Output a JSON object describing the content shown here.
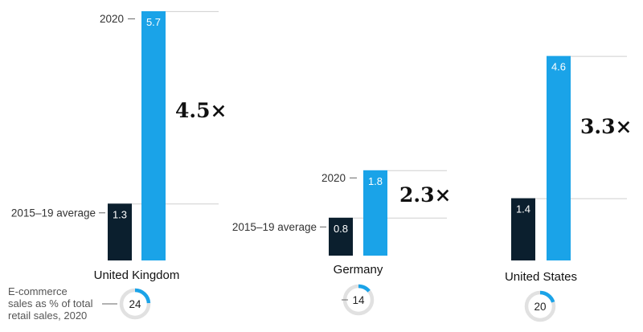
{
  "chart_data": {
    "type": "bar",
    "colors": {
      "average": "#0b1f2e",
      "year2020": "#1aa3e8",
      "ring_track": "#e1e1e1",
      "ring_fill": "#1aa3e8"
    },
    "series_labels": {
      "average": "2015–19 average",
      "year2020": "2020"
    },
    "groups": [
      {
        "country": "United Kingdom",
        "average": 1.3,
        "year2020": 5.7,
        "average_label": "1.3",
        "year2020_label": "5.7",
        "multiplier": "4.5×",
        "ecommerce_share": 24,
        "ecommerce_share_label": "24"
      },
      {
        "country": "Germany",
        "average": 0.8,
        "year2020": 1.8,
        "average_label": "0.8",
        "year2020_label": "1.8",
        "multiplier": "2.3×",
        "ecommerce_share": 14,
        "ecommerce_share_label": "14"
      },
      {
        "country": "United States",
        "average": 1.4,
        "year2020": 4.6,
        "average_label": "1.4",
        "year2020_label": "4.6",
        "multiplier": "3.3×",
        "ecommerce_share": 20,
        "ecommerce_share_label": "20"
      }
    ],
    "footnote_lines": [
      "E-commerce",
      "sales as % of total",
      "retail sales, 2020"
    ]
  }
}
